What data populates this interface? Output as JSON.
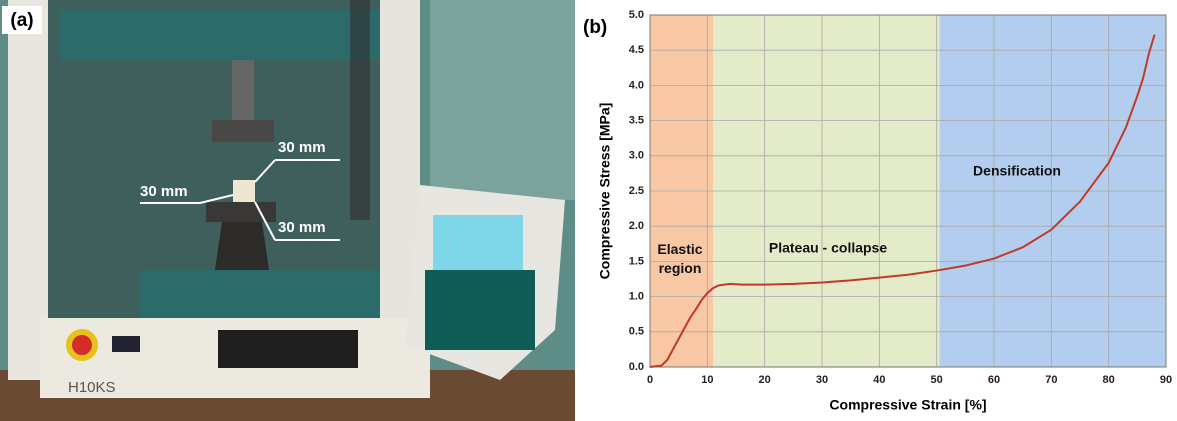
{
  "photo": {
    "label": "(a)",
    "annotations": [
      "30 mm",
      "30 mm",
      "30 mm"
    ],
    "machine_label": "H10KS"
  },
  "chart_data": {
    "type": "line",
    "panel_label": "(b)",
    "x_label": "Compressive Strain [%]",
    "y_label": "Compressive Stress [MPa]",
    "x": [
      0,
      2,
      3,
      4,
      5,
      6,
      7,
      8,
      9,
      10,
      11,
      12,
      14,
      16,
      20,
      25,
      30,
      35,
      40,
      45,
      50,
      55,
      60,
      65,
      70,
      75,
      80,
      83,
      85,
      86,
      87,
      88
    ],
    "values": [
      0,
      0.02,
      0.1,
      0.25,
      0.4,
      0.55,
      0.7,
      0.82,
      0.95,
      1.05,
      1.12,
      1.16,
      1.18,
      1.17,
      1.17,
      1.18,
      1.2,
      1.23,
      1.27,
      1.31,
      1.37,
      1.44,
      1.54,
      1.7,
      1.95,
      2.35,
      2.9,
      3.4,
      3.85,
      4.1,
      4.45,
      4.72
    ],
    "color": "#c0392b",
    "regions": [
      {
        "name": "Elastic region",
        "start": 0,
        "end": 11,
        "color": "#f7c8a3"
      },
      {
        "name": "Plateau - collapse",
        "start": 11,
        "end": 50.5,
        "color": "#e3ebc9"
      },
      {
        "name": "Densification",
        "start": 50.5,
        "end": 90,
        "color": "#b3cdee"
      }
    ],
    "xlim": [
      0,
      90
    ],
    "xticks": [
      0,
      10,
      20,
      30,
      40,
      50,
      60,
      70,
      80,
      90
    ],
    "ylim": [
      0,
      5
    ],
    "yticks": [
      {
        "value": 0,
        "label": "0.0"
      },
      0.5,
      {
        "value": 1,
        "label": "1.0"
      },
      1.5,
      {
        "value": 2,
        "label": "2.0"
      },
      2.5,
      {
        "value": 3,
        "label": "3.0"
      },
      3.5,
      {
        "value": 4,
        "label": "4.0"
      },
      4.5,
      {
        "value": 5,
        "label": "5.0"
      }
    ],
    "grid": true
  }
}
